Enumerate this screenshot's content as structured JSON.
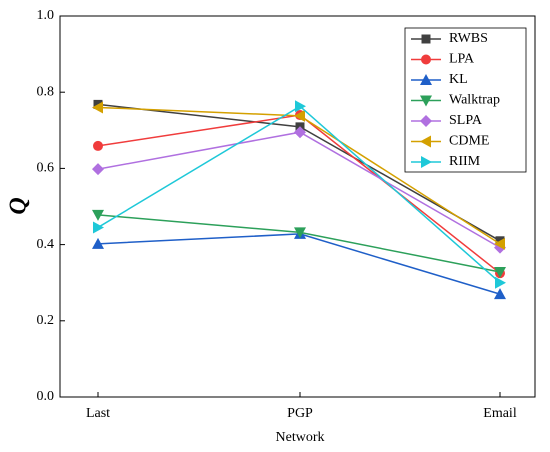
{
  "chart_data": {
    "type": "line",
    "xlabel": "Network",
    "ylabel": "Q",
    "categories": [
      "Last",
      "PGP",
      "Email"
    ],
    "series": [
      {
        "name": "RWBS",
        "color": "#404040",
        "marker": "square",
        "values": [
          0.768,
          0.709,
          0.41
        ]
      },
      {
        "name": "LPA",
        "color": "#f03c3c",
        "marker": "circle",
        "values": [
          0.659,
          0.74,
          0.325
        ]
      },
      {
        "name": "KL",
        "color": "#1f5fc8",
        "marker": "triangle-up",
        "values": [
          0.402,
          0.428,
          0.27
        ]
      },
      {
        "name": "Walktrap",
        "color": "#2ca05a",
        "marker": "triangle-down",
        "values": [
          0.478,
          0.432,
          0.328
        ]
      },
      {
        "name": "SLPA",
        "color": "#b070e0",
        "marker": "diamond",
        "values": [
          0.598,
          0.695,
          0.392
        ]
      },
      {
        "name": "CDME",
        "color": "#d4a000",
        "marker": "triangle-left",
        "values": [
          0.76,
          0.738,
          0.402
        ]
      },
      {
        "name": "RIIM",
        "color": "#1ec8d8",
        "marker": "triangle-right",
        "values": [
          0.445,
          0.763,
          0.3
        ]
      }
    ],
    "ylim": [
      0,
      1
    ],
    "yticks": [
      {
        "value": 0,
        "label": "0.0"
      },
      0.2,
      0.4,
      0.6,
      0.8,
      {
        "value": 1,
        "label": "1.0"
      }
    ],
    "legend": "upper right",
    "grid": false
  }
}
